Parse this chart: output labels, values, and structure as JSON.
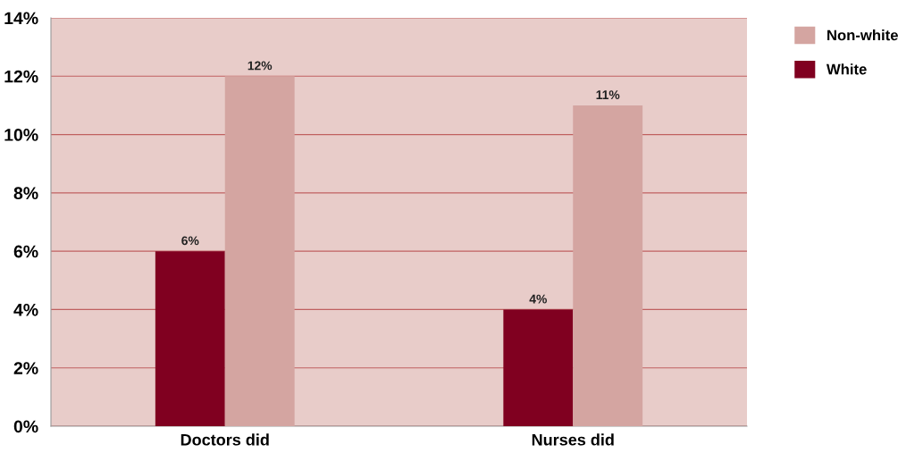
{
  "chart_data": {
    "type": "bar",
    "categories": [
      "Doctors did",
      "Nurses did"
    ],
    "series": [
      {
        "name": "White",
        "color": "#800020",
        "values": [
          6,
          4
        ],
        "value_labels": [
          "6%",
          "4%"
        ]
      },
      {
        "name": "Non-white",
        "color": "#d4a5a1",
        "values": [
          12,
          11
        ],
        "value_labels": [
          "12%",
          "11%"
        ]
      }
    ],
    "ylim": [
      0,
      14
    ],
    "yticks": [
      {
        "value": 0,
        "label": "0%"
      },
      {
        "value": 2,
        "label": "2%"
      },
      {
        "value": 4,
        "label": "4%"
      },
      {
        "value": 6,
        "label": "6%"
      },
      {
        "value": 8,
        "label": "8%"
      },
      {
        "value": 10,
        "label": "10%"
      },
      {
        "value": 12,
        "label": "12%"
      },
      {
        "value": 14,
        "label": "14%"
      }
    ],
    "grid": "y",
    "legend": "top right"
  }
}
